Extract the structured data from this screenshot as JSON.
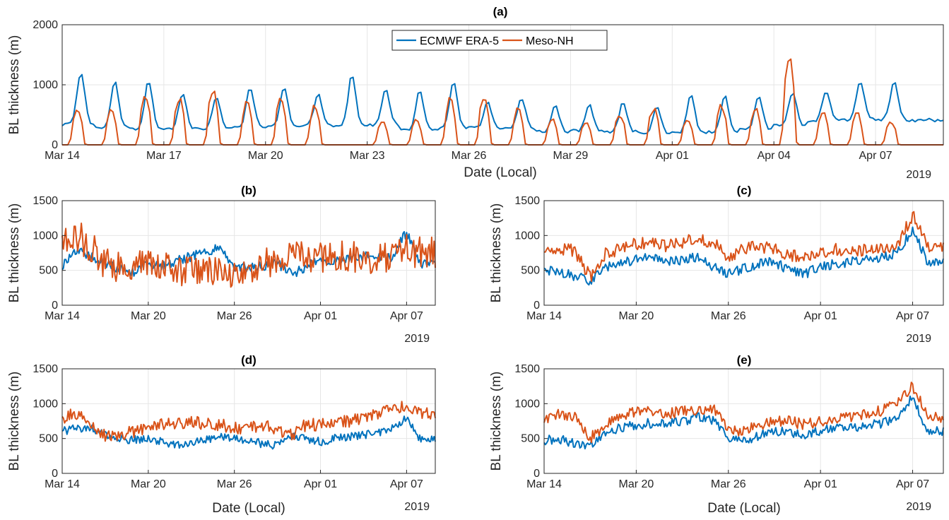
{
  "colors": {
    "era5": "#0072BD",
    "meso": "#D95319"
  },
  "chart_data": [
    {
      "type": "line",
      "title": "(a)",
      "xlabel": "Date (Local)",
      "ylabel": "BL thickness (m)",
      "year_label": "2019",
      "ylim": [
        0,
        2000
      ],
      "yticks": [
        0,
        1000,
        2000
      ],
      "x_days": [
        14,
        40
      ],
      "xticks": [
        {
          "day": 14,
          "label": "Mar 14"
        },
        {
          "day": 17,
          "label": "Mar 17"
        },
        {
          "day": 20,
          "label": "Mar 20"
        },
        {
          "day": 23,
          "label": "Mar 23"
        },
        {
          "day": 26,
          "label": "Mar 26"
        },
        {
          "day": 29,
          "label": "Mar 29"
        },
        {
          "day": 32,
          "label": "Apr 01"
        },
        {
          "day": 35,
          "label": "Apr 04"
        },
        {
          "day": 38,
          "label": "Apr 07"
        }
      ],
      "grid": true,
      "legend": {
        "placement": "top-center",
        "entries": [
          "ECMWF ERA-5",
          "Meso-NH"
        ]
      },
      "series": [
        {
          "name": "ECMWF ERA-5",
          "color_key": "era5",
          "daily_peak": [
            1200,
            1050,
            1070,
            850,
            800,
            960,
            980,
            850,
            1170,
            920,
            900,
            1050,
            700,
            770,
            680,
            680,
            700,
            650,
            860,
            830,
            830,
            890,
            900,
            1060,
            1050,
            420
          ],
          "daily_min": [
            340,
            280,
            260,
            260,
            260,
            300,
            300,
            320,
            300,
            330,
            250,
            270,
            280,
            280,
            220,
            230,
            220,
            190,
            200,
            210,
            260,
            320,
            400,
            420,
            420,
            400
          ]
        },
        {
          "name": "Meso-NH",
          "color_key": "meso",
          "daily_peak": [
            650,
            640,
            870,
            820,
            1000,
            750,
            870,
            690,
            0,
            400,
            440,
            810,
            850,
            640,
            480,
            400,
            550,
            650,
            460,
            700,
            650,
            1560,
            620,
            560,
            420,
            0
          ],
          "daily_min": [
            0,
            0,
            0,
            0,
            0,
            0,
            0,
            0,
            0,
            0,
            0,
            0,
            0,
            0,
            0,
            0,
            0,
            0,
            0,
            0,
            0,
            0,
            0,
            0,
            0,
            0
          ]
        }
      ]
    },
    {
      "type": "line",
      "title": "(b)",
      "xlabel": "",
      "ylabel": "BL thickness (m)",
      "year_label": "2019",
      "ylim": [
        0,
        1500
      ],
      "yticks": [
        0,
        500,
        1000,
        1500
      ],
      "x_days": [
        14,
        40
      ],
      "xticks": [
        {
          "day": 14,
          "label": "Mar 14"
        },
        {
          "day": 20,
          "label": "Mar 20"
        },
        {
          "day": 26,
          "label": "Mar 26"
        },
        {
          "day": 32,
          "label": "Apr 01"
        },
        {
          "day": 38,
          "label": "Apr 07"
        }
      ],
      "grid": true,
      "series": [
        {
          "name": "",
          "color_key": "era5",
          "daily_mean": [
            580,
            800,
            700,
            600,
            520,
            480,
            580,
            560,
            640,
            700,
            780,
            820,
            560,
            540,
            560,
            600,
            450,
            550,
            640,
            620,
            650,
            700,
            680,
            700,
            1050,
            600
          ],
          "noise": 70
        },
        {
          "name": "",
          "color_key": "meso",
          "daily_mean": [
            900,
            1000,
            850,
            600,
            550,
            600,
            650,
            600,
            450,
            480,
            450,
            500,
            480,
            500,
            600,
            620,
            700,
            720,
            680,
            720,
            700,
            650,
            650,
            700,
            800,
            750
          ],
          "noise": 230
        }
      ]
    },
    {
      "type": "line",
      "title": "(c)",
      "xlabel": "",
      "ylabel": "BL thickness (m)",
      "year_label": "2019",
      "ylim": [
        0,
        1500
      ],
      "yticks": [
        0,
        500,
        1000,
        1500
      ],
      "x_days": [
        14,
        40
      ],
      "xticks": [
        {
          "day": 14,
          "label": "Mar 14"
        },
        {
          "day": 20,
          "label": "Mar 20"
        },
        {
          "day": 26,
          "label": "Mar 26"
        },
        {
          "day": 32,
          "label": "Apr 01"
        },
        {
          "day": 38,
          "label": "Apr 07"
        }
      ],
      "grid": true,
      "series": [
        {
          "name": "",
          "color_key": "era5",
          "daily_mean": [
            500,
            480,
            420,
            350,
            550,
            600,
            650,
            700,
            620,
            650,
            700,
            550,
            450,
            520,
            600,
            620,
            500,
            450,
            550,
            600,
            620,
            650,
            680,
            750,
            1100,
            600
          ],
          "noise": 70
        },
        {
          "name": "",
          "color_key": "meso",
          "daily_mean": [
            800,
            820,
            780,
            400,
            750,
            800,
            880,
            900,
            850,
            900,
            950,
            900,
            700,
            800,
            850,
            800,
            700,
            720,
            750,
            800,
            780,
            800,
            800,
            850,
            1300,
            850
          ],
          "noise": 90
        }
      ]
    },
    {
      "type": "line",
      "title": "(d)",
      "xlabel": "Date (Local)",
      "ylabel": "BL thickness (m)",
      "year_label": "2019",
      "ylim": [
        0,
        1500
      ],
      "yticks": [
        0,
        500,
        1000,
        1500
      ],
      "x_days": [
        14,
        40
      ],
      "xticks": [
        {
          "day": 14,
          "label": "Mar 14"
        },
        {
          "day": 20,
          "label": "Mar 20"
        },
        {
          "day": 26,
          "label": "Mar 26"
        },
        {
          "day": 32,
          "label": "Apr 01"
        },
        {
          "day": 38,
          "label": "Apr 07"
        }
      ],
      "grid": true,
      "series": [
        {
          "name": "",
          "color_key": "era5",
          "daily_mean": [
            600,
            650,
            650,
            550,
            500,
            480,
            500,
            450,
            400,
            450,
            480,
            520,
            500,
            480,
            420,
            400,
            550,
            500,
            450,
            500,
            520,
            550,
            580,
            650,
            800,
            480
          ],
          "noise": 60
        },
        {
          "name": "",
          "color_key": "meso",
          "daily_mean": [
            800,
            850,
            700,
            550,
            550,
            600,
            650,
            700,
            700,
            750,
            700,
            700,
            650,
            650,
            700,
            600,
            550,
            700,
            700,
            750,
            750,
            800,
            850,
            950,
            950,
            850
          ],
          "noise": 90
        }
      ]
    },
    {
      "type": "line",
      "title": "(e)",
      "xlabel": "Date (Local)",
      "ylabel": "BL thickness (m)",
      "year_label": "2019",
      "ylim": [
        0,
        1500
      ],
      "yticks": [
        0,
        500,
        1000,
        1500
      ],
      "x_days": [
        14,
        40
      ],
      "xticks": [
        {
          "day": 14,
          "label": "Mar 14"
        },
        {
          "day": 20,
          "label": "Mar 20"
        },
        {
          "day": 26,
          "label": "Mar 26"
        },
        {
          "day": 32,
          "label": "Apr 01"
        },
        {
          "day": 38,
          "label": "Apr 07"
        }
      ],
      "grid": true,
      "series": [
        {
          "name": "",
          "color_key": "era5",
          "daily_mean": [
            480,
            500,
            420,
            380,
            600,
            650,
            700,
            720,
            700,
            750,
            800,
            750,
            500,
            450,
            550,
            600,
            600,
            550,
            620,
            650,
            650,
            700,
            720,
            800,
            1100,
            600
          ],
          "noise": 70
        },
        {
          "name": "",
          "color_key": "meso",
          "daily_mean": [
            750,
            850,
            800,
            500,
            700,
            800,
            900,
            900,
            850,
            900,
            900,
            950,
            650,
            600,
            700,
            750,
            750,
            700,
            750,
            800,
            800,
            850,
            900,
            1000,
            1250,
            800
          ],
          "noise": 80
        }
      ]
    }
  ]
}
